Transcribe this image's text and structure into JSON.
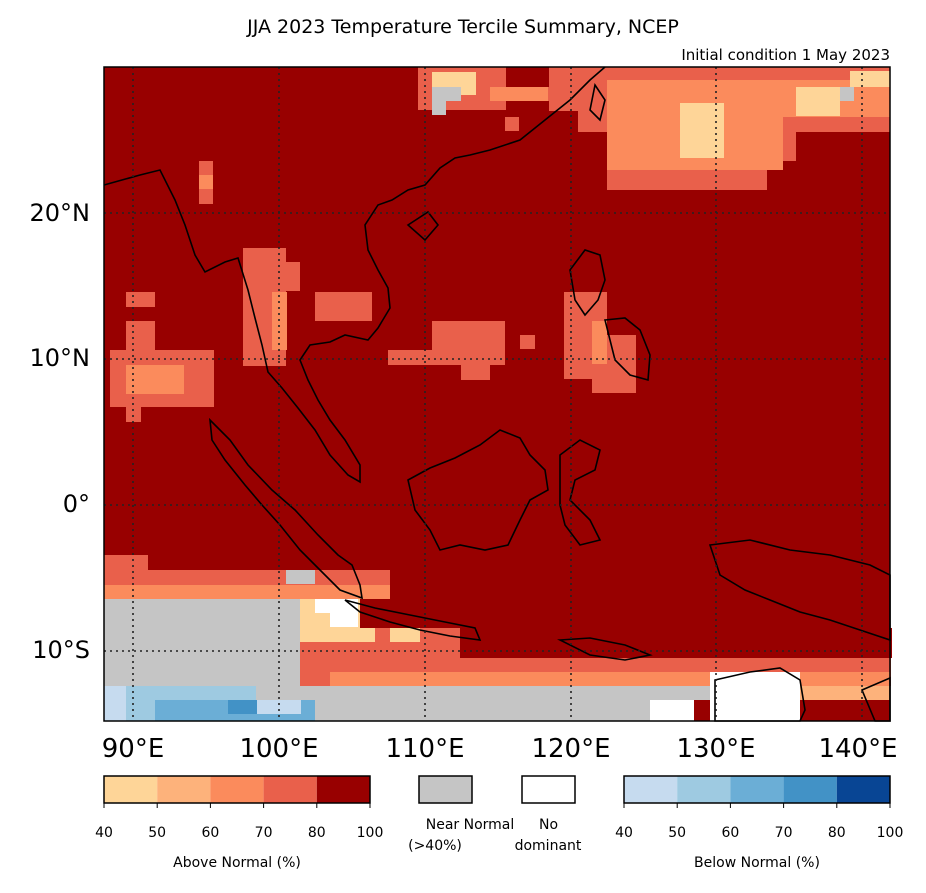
{
  "title": "JJA 2023 Temperature Tercile Summary, NCEP",
  "subtitle": "Initial condition 1 May 2023",
  "map": {
    "lat_labels": [
      "20°N",
      "10°N",
      "0°",
      "10°S"
    ],
    "lon_labels": [
      "90°E",
      "100°E",
      "110°E",
      "120°E",
      "130°E",
      "140°E"
    ],
    "lon_range": [
      87.5,
      141.5
    ],
    "lat_range": [
      -15,
      30
    ],
    "gridlines": "dotted",
    "dominant_category": "Above Normal 80-100%"
  },
  "legend": {
    "above_normal": {
      "label": "Above Normal (%)",
      "ticks": [
        "40",
        "50",
        "60",
        "70",
        "80",
        "100"
      ],
      "colors": [
        "#fed598",
        "#fdb27b",
        "#fb8b5c",
        "#e9604b",
        "#980000"
      ]
    },
    "near_normal": {
      "label_line1": "Near Normal",
      "label_line2": "(>40%)",
      "color": "#c5c5c5"
    },
    "no_dominant": {
      "label_line1": "No",
      "label_line2": "dominant",
      "color": "#ffffff"
    },
    "below_normal": {
      "label": "Below Normal (%)",
      "ticks": [
        "40",
        "50",
        "60",
        "70",
        "80",
        "100"
      ],
      "colors": [
        "#c6dbef",
        "#9ecae1",
        "#6baed6",
        "#4292c6",
        "#084594"
      ]
    }
  }
}
